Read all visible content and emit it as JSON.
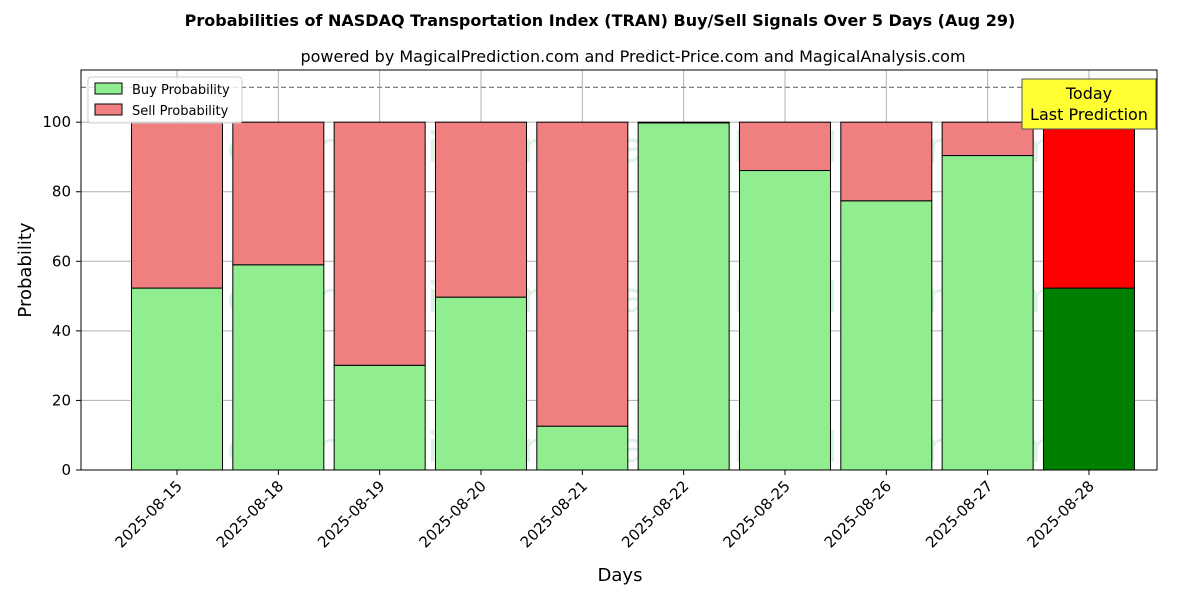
{
  "chart_data": {
    "type": "bar",
    "stacked": true,
    "title": "Probabilities of NASDAQ Transportation Index (TRAN) Buy/Sell Signals Over 5 Days (Aug 29)",
    "subtitle": "powered by MagicalPrediction.com and Predict-Price.com and MagicalAnalysis.com",
    "xlabel": "Days",
    "ylabel": "Probability",
    "ylim": [
      0,
      115
    ],
    "yticks": [
      0,
      20,
      40,
      60,
      80,
      100
    ],
    "grid": true,
    "legend_position": "top-left",
    "categories": [
      "2025-08-15",
      "2025-08-18",
      "2025-08-19",
      "2025-08-20",
      "2025-08-21",
      "2025-08-22",
      "2025-08-25",
      "2025-08-26",
      "2025-08-27",
      "2025-08-28"
    ],
    "series": [
      {
        "name": "Buy Probability",
        "color": "#90ee90",
        "values": [
          52.3,
          59,
          30.1,
          49.7,
          12.6,
          99.8,
          86.1,
          77.4,
          90.4,
          52.3
        ]
      },
      {
        "name": "Sell Probability",
        "color": "#f08080",
        "values": [
          47.7,
          41,
          69.9,
          50.3,
          87.4,
          0.2,
          13.9,
          22.6,
          9.6,
          47.7
        ]
      }
    ],
    "highlight": {
      "index": 9,
      "buy_color": "#008000",
      "sell_color": "#ff0000"
    },
    "reference_line": {
      "y": 110,
      "style": "dashed",
      "color": "#808080"
    },
    "annotation": {
      "lines": [
        "Today",
        "Last Prediction"
      ],
      "background": "#ffff33",
      "anchor_index": 9
    },
    "watermarks": [
      "MagicalAnalysis.com",
      "MagicalPrediction.com"
    ]
  }
}
